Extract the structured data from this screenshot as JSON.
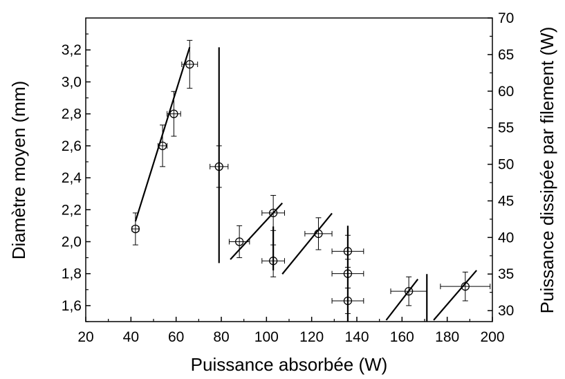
{
  "chart_data": {
    "type": "scatter",
    "title": "",
    "xlabel": "Puissance absorbée (W)",
    "ylabel": "Diamètre moyen (mm)",
    "y2label": "Puissance dissipée par filement (W)",
    "xlim": [
      20,
      200
    ],
    "ylim": [
      1.5,
      3.4
    ],
    "y2lim": [
      28.5,
      70
    ],
    "xticks": [
      "20",
      "40",
      "60",
      "80",
      "100",
      "120",
      "140",
      "160",
      "180",
      "200"
    ],
    "yticks": [
      "1,6",
      "1,8",
      "2,0",
      "2,2",
      "2,4",
      "2,6",
      "2,8",
      "3,0",
      "3,2"
    ],
    "y2ticks": [
      "30",
      "35",
      "40",
      "45",
      "50",
      "55",
      "60",
      "65",
      "70"
    ],
    "grid": false,
    "series": [
      {
        "marker": "open-circle",
        "points": [
          {
            "x": 42,
            "y": 2.08,
            "xerr": 1.5,
            "yerr": 0.1
          },
          {
            "x": 54,
            "y": 2.6,
            "xerr": 2,
            "yerr": 0.13
          },
          {
            "x": 59,
            "y": 2.8,
            "xerr": 3,
            "yerr": 0.14
          },
          {
            "x": 66,
            "y": 3.11,
            "xerr": 3.5,
            "yerr": 0.15
          },
          {
            "x": 79,
            "y": 2.47,
            "xerr": 4,
            "yerr": 0.13
          },
          {
            "x": 88,
            "y": 2.0,
            "xerr": 4.5,
            "yerr": 0.1
          },
          {
            "x": 103,
            "y": 2.18,
            "xerr": 5,
            "yerr": 0.11
          },
          {
            "x": 103,
            "y": 1.88,
            "xerr": 5,
            "yerr": 0.1
          },
          {
            "x": 123,
            "y": 2.05,
            "xerr": 6,
            "yerr": 0.1
          },
          {
            "x": 136,
            "y": 1.94,
            "xerr": 7,
            "yerr": 0.1
          },
          {
            "x": 136,
            "y": 1.8,
            "xerr": 7,
            "yerr": 0.09
          },
          {
            "x": 136,
            "y": 1.63,
            "xerr": 7,
            "yerr": 0.08
          },
          {
            "x": 163,
            "y": 1.69,
            "xerr": 8,
            "yerr": 0.09
          },
          {
            "x": 188,
            "y": 1.72,
            "xerr": 11,
            "yerr": 0.09
          }
        ]
      }
    ],
    "dissipated_power_segments": [
      {
        "x1": 42,
        "y1": 42.2,
        "x2": 66,
        "y2": 66
      },
      {
        "x1": 79,
        "y1": 36.5,
        "x2": 79,
        "y2": 66
      },
      {
        "x1": 84,
        "y1": 37,
        "x2": 107,
        "y2": 44.7
      },
      {
        "x1": 103,
        "y1": 35.5,
        "x2": 103,
        "y2": 41.5
      },
      {
        "x1": 107,
        "y1": 35,
        "x2": 129,
        "y2": 43.3
      },
      {
        "x1": 136,
        "y1": 28.5,
        "x2": 136,
        "y2": 41.6
      },
      {
        "x1": 153,
        "y1": 28.7,
        "x2": 167,
        "y2": 34.3
      },
      {
        "x1": 171,
        "y1": 28.5,
        "x2": 171,
        "y2": 35
      },
      {
        "x1": 174,
        "y1": 28.7,
        "x2": 193,
        "y2": 35.5
      }
    ]
  }
}
